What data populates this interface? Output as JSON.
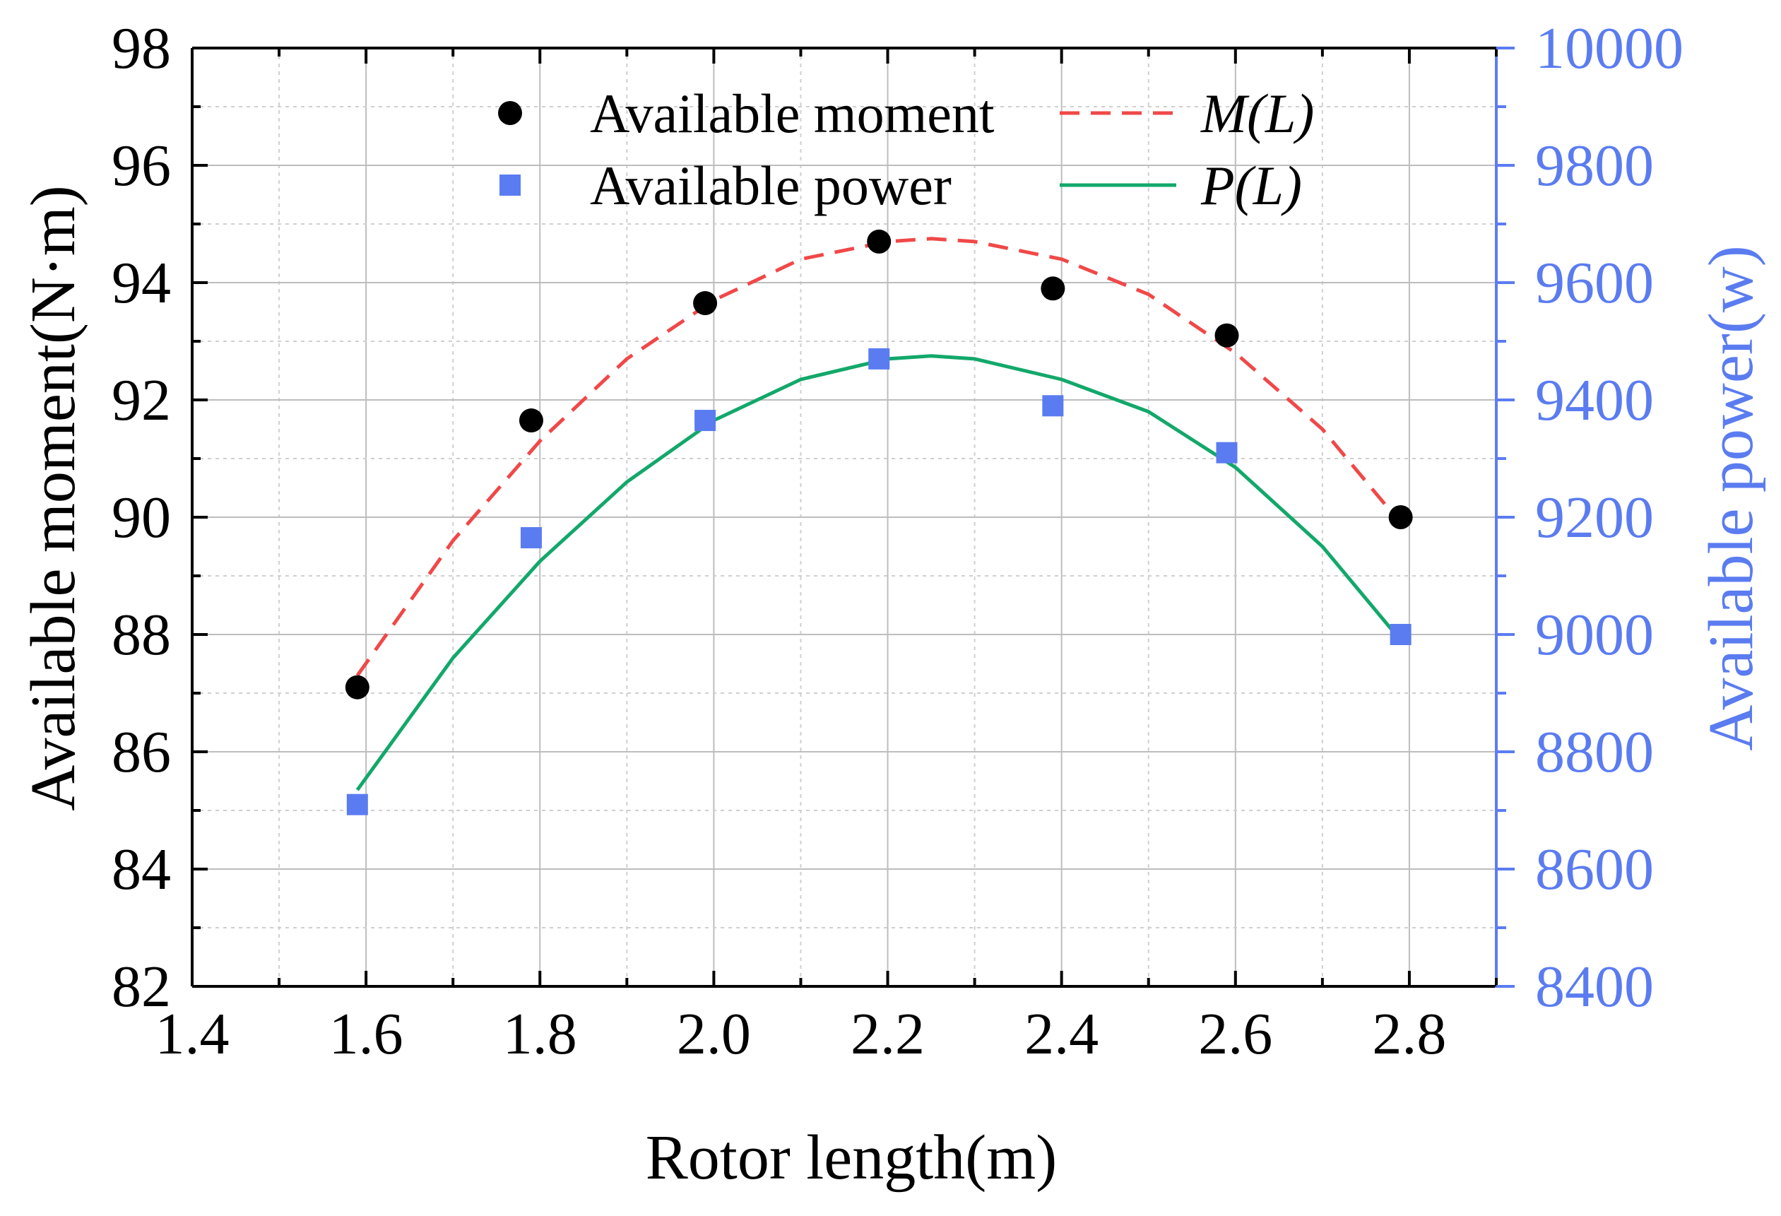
{
  "chart_data": {
    "type": "scatter",
    "xlabel": "Rotor length(m)",
    "ylabel_left": "Available moment(N·m)",
    "ylabel_right": "Available power(w)",
    "xlim": [
      1.4,
      2.9
    ],
    "ylim_left": [
      82,
      98
    ],
    "ylim_right": [
      8400,
      10000
    ],
    "x_ticks": [
      1.4,
      1.6,
      1.8,
      2.0,
      2.2,
      2.4,
      2.6,
      2.8
    ],
    "x_tick_labels": [
      "1.4",
      "1.6",
      "1.8",
      "2.0",
      "2.2",
      "2.4",
      "2.6",
      "2.8"
    ],
    "y_left_ticks": [
      82,
      84,
      86,
      88,
      90,
      92,
      94,
      96,
      98
    ],
    "y_left_tick_labels": [
      "82",
      "84",
      "86",
      "88",
      "90",
      "92",
      "94",
      "96",
      "98"
    ],
    "y_right_ticks": [
      8400,
      8600,
      8800,
      9000,
      9200,
      9400,
      9600,
      9800,
      10000
    ],
    "y_right_tick_labels": [
      "8400",
      "8600",
      "8800",
      "9000",
      "9200",
      "9400",
      "9600",
      "9800",
      "10000"
    ],
    "grid": true,
    "legend_position": "top",
    "colors": {
      "moment_points": "#000000",
      "power_points": "#5b7cf0",
      "moment_fit": "#f04848",
      "power_fit": "#12a86a",
      "right_axis": "#5b7cf0"
    },
    "series": [
      {
        "name": "Available moment",
        "axis": "left",
        "marker": "circle",
        "x": [
          1.59,
          1.79,
          1.99,
          2.19,
          2.39,
          2.59,
          2.79
        ],
        "values": [
          87.1,
          91.65,
          93.65,
          94.7,
          93.9,
          93.1,
          90.0
        ]
      },
      {
        "name": "Available power",
        "axis": "right",
        "marker": "square",
        "x": [
          1.59,
          1.79,
          1.99,
          2.19,
          2.39,
          2.59,
          2.79
        ],
        "values": [
          8710,
          9165,
          9365,
          9470,
          9390,
          9310,
          9000
        ]
      },
      {
        "name": "M(L)",
        "axis": "left",
        "style": "dashed",
        "x": [
          1.59,
          1.7,
          1.8,
          1.9,
          2.0,
          2.1,
          2.2,
          2.25,
          2.3,
          2.4,
          2.5,
          2.6,
          2.7,
          2.79
        ],
        "values": [
          87.3,
          89.6,
          91.3,
          92.7,
          93.7,
          94.4,
          94.7,
          94.75,
          94.7,
          94.4,
          93.8,
          92.8,
          91.5,
          89.9
        ]
      },
      {
        "name": "P(L)",
        "axis": "right",
        "style": "solid",
        "x": [
          1.59,
          1.7,
          1.8,
          1.9,
          2.0,
          2.1,
          2.2,
          2.25,
          2.3,
          2.4,
          2.5,
          2.6,
          2.7,
          2.79
        ],
        "values": [
          8735,
          8960,
          9125,
          9260,
          9365,
          9435,
          9470,
          9475,
          9470,
          9435,
          9380,
          9285,
          9150,
          8990
        ]
      }
    ],
    "legend": [
      {
        "label": "Available moment",
        "series": 0
      },
      {
        "label": "M(L)",
        "series": 2
      },
      {
        "label": "Available power",
        "series": 1
      },
      {
        "label": "P(L)",
        "series": 3
      }
    ]
  }
}
